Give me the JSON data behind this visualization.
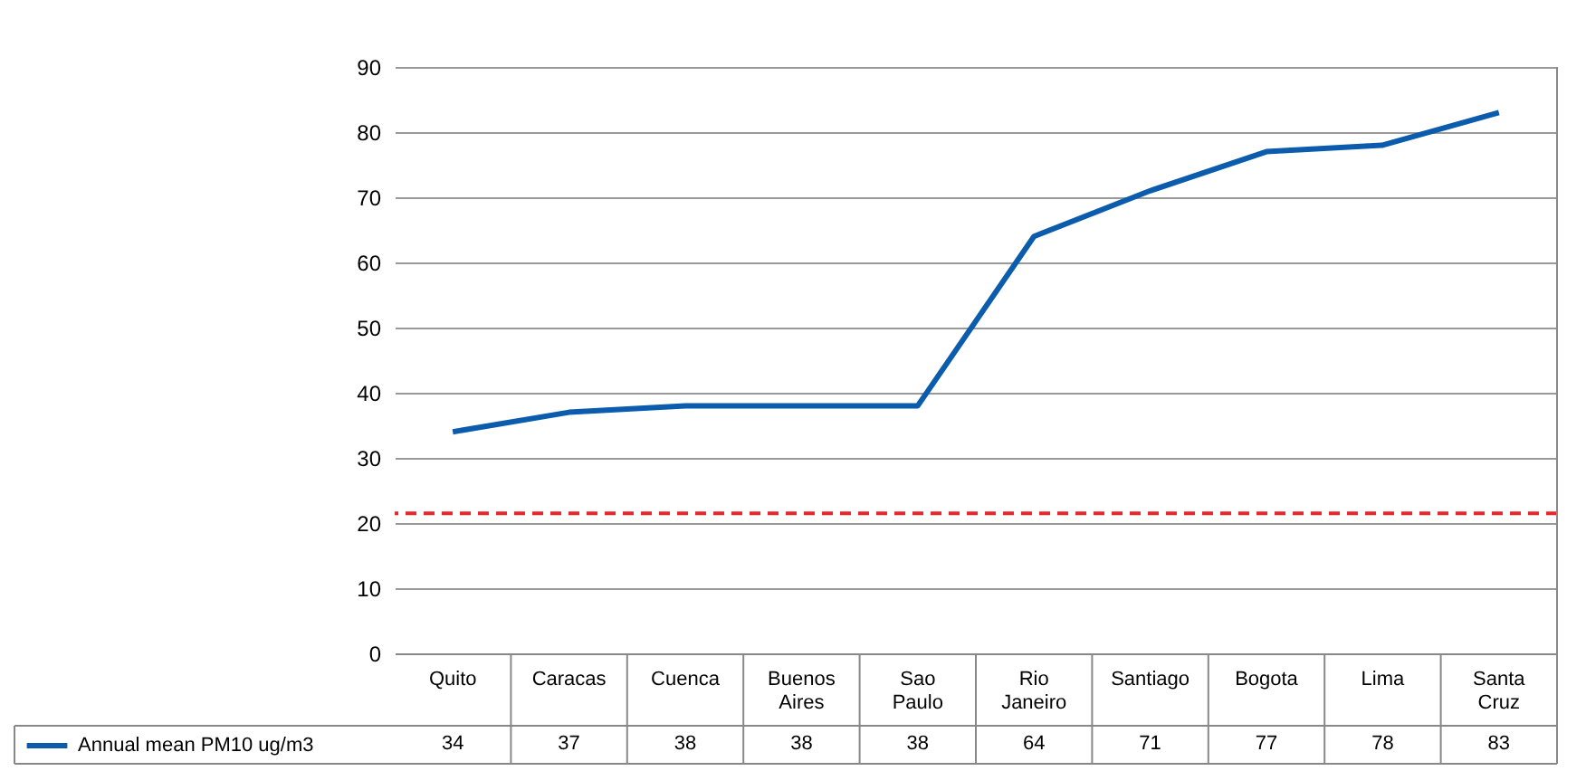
{
  "chart_data": {
    "type": "line",
    "categories": [
      "Quito",
      "Caracas",
      "Cuenca",
      "Buenos Aires",
      "Sao Paulo",
      "Rio Janeiro",
      "Santiago",
      "Bogota",
      "Lima",
      "Santa Cruz"
    ],
    "series": [
      {
        "name": "Annual mean PM10 ug/m3",
        "color": "#0b5cad",
        "values": [
          34,
          37,
          38,
          38,
          38,
          64,
          71,
          77,
          78,
          83
        ]
      }
    ],
    "ylim": [
      0,
      90
    ],
    "yticks": [
      0,
      10,
      20,
      30,
      40,
      50,
      60,
      70,
      80,
      90
    ],
    "ref_lines": [
      {
        "axis": "y",
        "value": 21.5,
        "color": "#e8262b",
        "line_style": "dashed"
      }
    ],
    "grid": "y",
    "legend": "bottom left",
    "data_labels": true,
    "marker": "none",
    "line_style": "solid"
  }
}
